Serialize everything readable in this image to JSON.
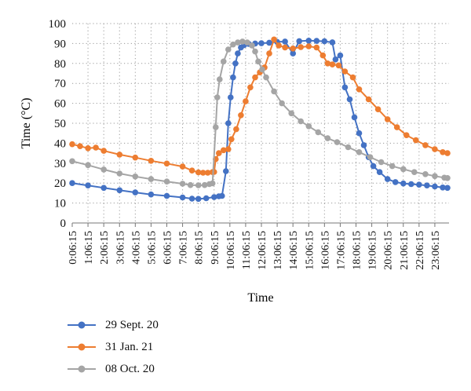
{
  "chart_data": {
    "type": "line",
    "title": "",
    "xlabel": "Time",
    "ylabel": "Time (°C)",
    "ylim": [
      0,
      100
    ],
    "yticks": [
      0,
      10,
      20,
      30,
      40,
      50,
      60,
      70,
      80,
      90,
      100
    ],
    "grid": "dotted horizontal and vertical",
    "legend_position": "bottom-left",
    "xtick_labels": [
      "0:06:15",
      "1:06:15",
      "2:06:15",
      "3:06:15",
      "4:06:15",
      "5:06:15",
      "6:06:15",
      "7:06:15",
      "8:06:15",
      "9:06:15",
      "10:06:15",
      "11:06:15",
      "12:06:15",
      "13:06:15",
      "14:06:15",
      "15:06:15",
      "16:06:15",
      "17:06:15",
      "18:06:15",
      "19:06:15",
      "20:06:15",
      "21:06:15",
      "22:06:15",
      "23:06:15"
    ],
    "x_unit": "hours after 0:06:15",
    "series": [
      {
        "name": "29 Sept. 20",
        "color": "#4472C4",
        "points": [
          [
            0,
            20
          ],
          [
            1,
            18.8
          ],
          [
            2,
            17.6
          ],
          [
            3,
            16.4
          ],
          [
            4,
            15.3
          ],
          [
            5,
            14.3
          ],
          [
            6,
            13.6
          ],
          [
            7,
            12.8
          ],
          [
            7.6,
            12.2
          ],
          [
            8,
            12.1
          ],
          [
            8.5,
            12.4
          ],
          [
            9,
            13.0
          ],
          [
            9.3,
            13.4
          ],
          [
            9.5,
            13.6
          ],
          [
            9.75,
            26
          ],
          [
            9.9,
            50
          ],
          [
            10.05,
            63
          ],
          [
            10.2,
            73
          ],
          [
            10.35,
            80
          ],
          [
            10.5,
            85
          ],
          [
            10.7,
            88
          ],
          [
            10.9,
            89.2
          ],
          [
            11.2,
            89.8
          ],
          [
            11.6,
            90.0
          ],
          [
            12.0,
            90.1
          ],
          [
            12.5,
            90.4
          ],
          [
            13.0,
            90.8
          ],
          [
            13.5,
            91.0
          ],
          [
            14.0,
            85
          ],
          [
            14.4,
            91.2
          ],
          [
            15.0,
            91.4
          ],
          [
            15.5,
            91.3
          ],
          [
            16.0,
            91.1
          ],
          [
            16.5,
            90.6
          ],
          [
            16.7,
            82
          ],
          [
            17.0,
            84
          ],
          [
            17.3,
            68
          ],
          [
            17.6,
            62
          ],
          [
            17.9,
            53
          ],
          [
            18.2,
            45
          ],
          [
            18.5,
            39
          ],
          [
            18.8,
            33
          ],
          [
            19.1,
            28.5
          ],
          [
            19.5,
            25.5
          ],
          [
            20.0,
            22
          ],
          [
            20.5,
            20.5
          ],
          [
            21,
            19.8
          ],
          [
            21.5,
            19.5
          ],
          [
            22,
            19.2
          ],
          [
            22.5,
            18.8
          ],
          [
            23,
            18.3
          ],
          [
            23.5,
            17.8
          ],
          [
            23.8,
            17.6
          ]
        ]
      },
      {
        "name": "31 Jan. 21",
        "color": "#ED7D31",
        "points": [
          [
            0,
            39.5
          ],
          [
            0.5,
            38.5
          ],
          [
            1,
            37.5
          ],
          [
            1.5,
            37.8
          ],
          [
            2,
            36.2
          ],
          [
            3,
            34.3
          ],
          [
            4,
            32.8
          ],
          [
            5,
            31.2
          ],
          [
            6,
            29.8
          ],
          [
            7,
            28.3
          ],
          [
            7.6,
            26.3
          ],
          [
            8,
            25.4
          ],
          [
            8.3,
            25.2
          ],
          [
            8.6,
            25.2
          ],
          [
            8.9,
            25.5
          ],
          [
            9.0,
            25.6
          ],
          [
            9.1,
            32
          ],
          [
            9.3,
            35
          ],
          [
            9.6,
            36.5
          ],
          [
            9.9,
            37
          ],
          [
            10.1,
            42
          ],
          [
            10.4,
            47
          ],
          [
            10.7,
            54
          ],
          [
            11.0,
            61
          ],
          [
            11.3,
            68
          ],
          [
            11.6,
            73
          ],
          [
            11.9,
            75.5
          ],
          [
            12.2,
            78
          ],
          [
            12.5,
            85
          ],
          [
            12.8,
            92
          ],
          [
            13.1,
            89
          ],
          [
            13.5,
            88
          ],
          [
            14.0,
            87.5
          ],
          [
            14.5,
            88.2
          ],
          [
            15.0,
            88.6
          ],
          [
            15.5,
            88
          ],
          [
            15.9,
            84
          ],
          [
            16.2,
            80
          ],
          [
            16.5,
            79.5
          ],
          [
            16.9,
            79
          ],
          [
            17.3,
            76
          ],
          [
            17.8,
            73
          ],
          [
            18.2,
            67
          ],
          [
            18.8,
            62
          ],
          [
            19.4,
            57
          ],
          [
            20.0,
            52
          ],
          [
            20.6,
            48
          ],
          [
            21.2,
            44
          ],
          [
            21.8,
            41.5
          ],
          [
            22.4,
            39
          ],
          [
            23.0,
            37
          ],
          [
            23.5,
            35.5
          ],
          [
            23.8,
            35
          ]
        ]
      },
      {
        "name": "08 Oct. 20",
        "color": "#A5A5A5",
        "points": [
          [
            0,
            31
          ],
          [
            1,
            29
          ],
          [
            2,
            26.8
          ],
          [
            3,
            24.8
          ],
          [
            4,
            23.3
          ],
          [
            5,
            22
          ],
          [
            6,
            20.8
          ],
          [
            7,
            19.7
          ],
          [
            7.5,
            19.0
          ],
          [
            8,
            18.9
          ],
          [
            8.4,
            19.0
          ],
          [
            8.7,
            19.5
          ],
          [
            8.9,
            19.9
          ],
          [
            9.1,
            48
          ],
          [
            9.2,
            63
          ],
          [
            9.35,
            72
          ],
          [
            9.6,
            81
          ],
          [
            9.9,
            87
          ],
          [
            10.2,
            89.5
          ],
          [
            10.5,
            90.5
          ],
          [
            10.8,
            91.0
          ],
          [
            11.1,
            90.5
          ],
          [
            11.4,
            89
          ],
          [
            11.6,
            86
          ],
          [
            11.8,
            81
          ],
          [
            12.05,
            77
          ],
          [
            12.3,
            73
          ],
          [
            12.8,
            66
          ],
          [
            13.3,
            60
          ],
          [
            13.9,
            55
          ],
          [
            14.5,
            51
          ],
          [
            15.0,
            48.5
          ],
          [
            15.6,
            45.5
          ],
          [
            16.2,
            42.5
          ],
          [
            16.8,
            40.5
          ],
          [
            17.5,
            38
          ],
          [
            18.2,
            35.5
          ],
          [
            18.9,
            33
          ],
          [
            19.6,
            30.5
          ],
          [
            20.3,
            28.5
          ],
          [
            21,
            27
          ],
          [
            21.7,
            25.5
          ],
          [
            22.4,
            24.5
          ],
          [
            23.0,
            23.5
          ],
          [
            23.6,
            22.7
          ],
          [
            23.8,
            22.5
          ]
        ]
      }
    ]
  }
}
